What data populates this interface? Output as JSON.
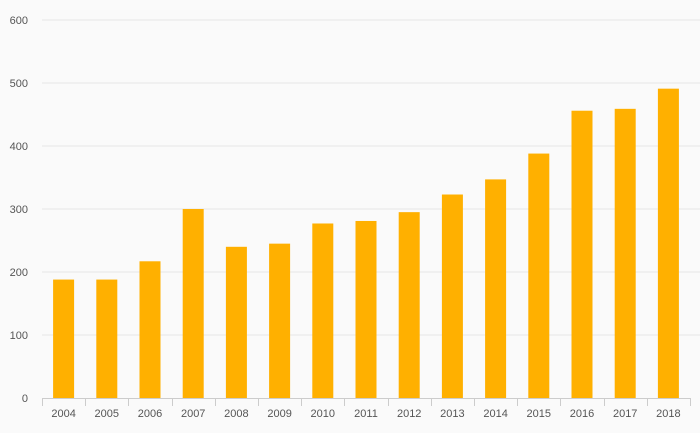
{
  "chart_data": {
    "type": "bar",
    "title": "",
    "xlabel": "",
    "ylabel": "",
    "categories": [
      "2004",
      "2005",
      "2006",
      "2007",
      "2008",
      "2009",
      "2010",
      "2011",
      "2012",
      "2013",
      "2014",
      "2015",
      "2016",
      "2017",
      "2018"
    ],
    "values": [
      188,
      188,
      217,
      300,
      240,
      245,
      277,
      281,
      295,
      323,
      347,
      388,
      456,
      459,
      491
    ],
    "ylim": [
      0,
      600
    ],
    "yticks": [
      "0",
      "100",
      "200",
      "300",
      "400",
      "500",
      "600"
    ],
    "grid": true,
    "legend": "none",
    "colors": {
      "bar": "#ffb000",
      "grid": "#e6e6e6",
      "axis": "#cccccc",
      "label": "#555555",
      "background": "#fafafa"
    }
  }
}
